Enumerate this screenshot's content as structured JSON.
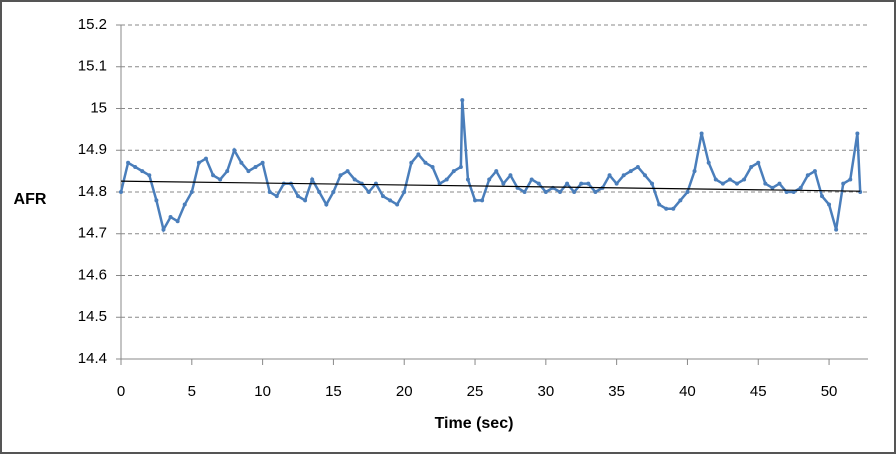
{
  "chart_data": {
    "type": "line",
    "x_label": "Time (sec)",
    "y_label": "AFR",
    "xlim": [
      0,
      52.75
    ],
    "xticks": [
      0,
      5,
      10,
      15,
      20,
      25,
      30,
      35,
      40,
      45,
      50
    ],
    "ylim": [
      14.4,
      15.2
    ],
    "yticks": [
      14.4,
      14.5,
      14.6,
      14.7,
      14.8,
      14.9,
      15,
      15.1,
      15.2
    ],
    "grid": true,
    "series": [
      {
        "color": "#4a7ebb",
        "x": [
          0,
          0.5,
          1,
          1.5,
          2,
          2.5,
          3,
          3.5,
          4,
          4.5,
          5,
          5.5,
          6,
          6.5,
          7,
          7.5,
          8,
          8.5,
          9,
          9.5,
          10,
          10.5,
          11,
          11.5,
          12,
          12.5,
          13,
          13.5,
          14,
          14.5,
          15,
          15.5,
          16,
          16.5,
          17,
          17.5,
          18,
          18.5,
          19,
          19.5,
          20,
          20.5,
          21,
          21.5,
          22,
          22.5,
          23,
          23.5,
          24,
          24.1,
          24.5,
          25,
          25.5,
          26,
          26.5,
          27,
          27.5,
          28,
          28.5,
          29,
          29.5,
          30,
          30.5,
          31,
          31.5,
          32,
          32.5,
          33,
          33.5,
          34,
          34.5,
          35,
          35.5,
          36,
          36.5,
          37,
          37.5,
          38,
          38.5,
          39,
          39.5,
          40,
          40.5,
          41,
          41.5,
          42,
          42.5,
          43,
          43.5,
          44,
          44.5,
          45,
          45.5,
          46,
          46.5,
          47,
          47.5,
          48,
          48.5,
          49,
          49.5,
          50,
          50.5,
          51,
          51.5,
          52,
          52.2
        ],
        "values": [
          14.8,
          14.87,
          14.86,
          14.85,
          14.84,
          14.78,
          14.71,
          14.74,
          14.73,
          14.77,
          14.8,
          14.87,
          14.88,
          14.84,
          14.83,
          14.85,
          14.9,
          14.87,
          14.85,
          14.86,
          14.87,
          14.8,
          14.79,
          14.82,
          14.82,
          14.79,
          14.78,
          14.83,
          14.8,
          14.77,
          14.8,
          14.84,
          14.85,
          14.83,
          14.82,
          14.8,
          14.82,
          14.79,
          14.78,
          14.77,
          14.8,
          14.87,
          14.89,
          14.87,
          14.86,
          14.82,
          14.83,
          14.85,
          14.86,
          15.02,
          14.83,
          14.78,
          14.78,
          14.83,
          14.85,
          14.82,
          14.84,
          14.81,
          14.8,
          14.83,
          14.82,
          14.8,
          14.81,
          14.8,
          14.82,
          14.8,
          14.82,
          14.82,
          14.8,
          14.81,
          14.84,
          14.82,
          14.84,
          14.85,
          14.86,
          14.84,
          14.82,
          14.77,
          14.76,
          14.76,
          14.78,
          14.8,
          14.85,
          14.94,
          14.87,
          14.83,
          14.82,
          14.83,
          14.82,
          14.83,
          14.86,
          14.87,
          14.82,
          14.81,
          14.82,
          14.8,
          14.8,
          14.81,
          14.84,
          14.85,
          14.79,
          14.77,
          14.71,
          14.82,
          14.83,
          14.94,
          14.8
        ]
      },
      {
        "color": "#000000",
        "x": [
          0,
          52.2
        ],
        "values": [
          14.826,
          14.802
        ]
      }
    ]
  }
}
